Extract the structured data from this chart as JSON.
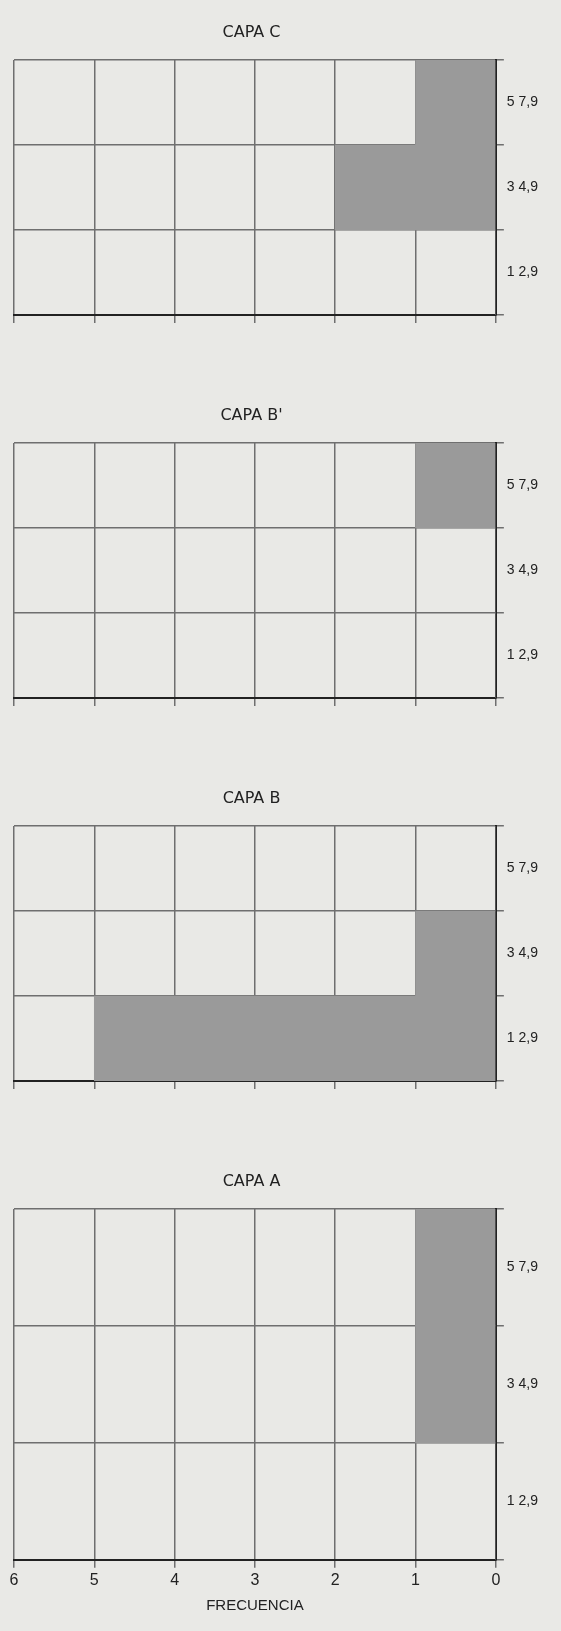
{
  "chart_data": [
    {
      "type": "bar",
      "orientation": "horizontal",
      "title": "CAPA A",
      "xlabel": "FRECUENCIA",
      "categories": [
        "5 7,9",
        "3 4,9",
        "1 2,9"
      ],
      "values": [
        1,
        1,
        0
      ],
      "color": "#9a9a9a",
      "xlim": [
        6,
        0
      ],
      "xticks": [
        0,
        1,
        2,
        3,
        4,
        5,
        6
      ],
      "grid": true
    },
    {
      "type": "bar",
      "orientation": "horizontal",
      "title": "CAPA B",
      "categories": [
        "5 7,9",
        "3 4,9",
        "1 2,9"
      ],
      "values": [
        0,
        1,
        5
      ],
      "color": "#9a9a9a",
      "xlim": [
        6,
        0
      ],
      "xticks": [
        0,
        1,
        2,
        3,
        4,
        5,
        6
      ],
      "grid": true,
      "tick_labels": "y"
    },
    {
      "type": "bar",
      "orientation": "horizontal",
      "title": "CAPA B'",
      "categories": [
        "5 7,9",
        "3 4,9",
        "1 2,9"
      ],
      "values": [
        1,
        0,
        0
      ],
      "color": "#9a9a9a",
      "xlim": [
        6,
        0
      ],
      "xticks": [
        0,
        1,
        2,
        3,
        4,
        5,
        6
      ],
      "grid": true,
      "tick_labels": "y"
    },
    {
      "type": "bar",
      "orientation": "horizontal",
      "title": "CAPA C",
      "categories": [
        "5 7,9",
        "3 4,9",
        "1 2,9"
      ],
      "values": [
        1,
        2,
        0
      ],
      "color": "#9a9a9a",
      "xlim": [
        6,
        0
      ],
      "xticks": [
        0,
        1,
        2,
        3,
        4,
        5,
        6
      ],
      "grid": true,
      "tick_labels": "y"
    }
  ]
}
